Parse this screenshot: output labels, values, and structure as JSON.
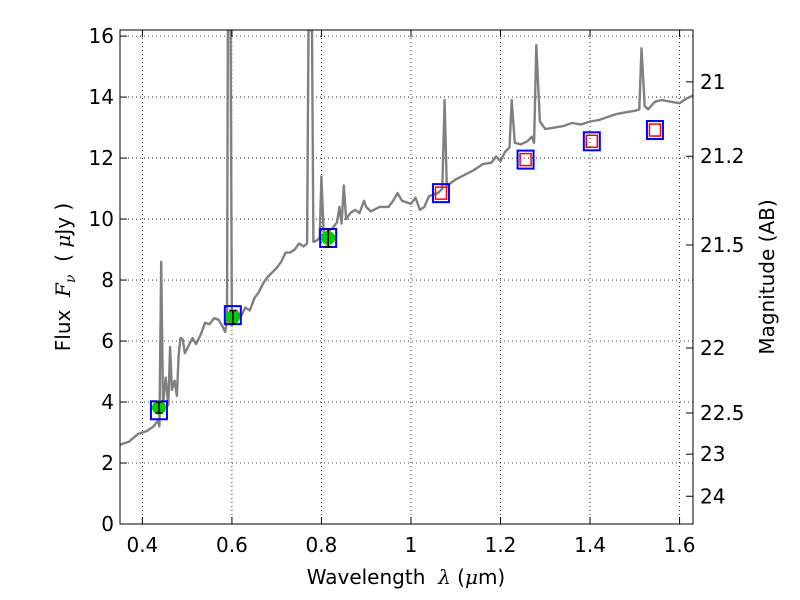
{
  "chart_data": {
    "type": "line",
    "xlabel_prefix": "Wavelength  ",
    "xlabel_symbol": "λ",
    "xlabel_suffix": " (",
    "xlabel_mu": "μ",
    "xlabel_unit": "m)",
    "ylabel_prefix": "Flux  ",
    "ylabel_symbol": "F",
    "ylabel_sub": "ν",
    "ylabel_suffix": "  ( ",
    "ylabel_mu": "μ",
    "ylabel_unit": "Jy )",
    "y2label": "Magnitude (AB)",
    "xlim": [
      0.35,
      1.63
    ],
    "ylim": [
      0,
      16.2
    ],
    "grid": true,
    "x_ticks": [
      {
        "v": 0.4,
        "label": "0.4"
      },
      {
        "v": 0.6,
        "label": "0.6"
      },
      {
        "v": 0.8,
        "label": "0.8"
      },
      {
        "v": 1.0,
        "label": "1"
      },
      {
        "v": 1.2,
        "label": "1.2"
      },
      {
        "v": 1.4,
        "label": "1.4"
      },
      {
        "v": 1.6,
        "label": "1.6"
      }
    ],
    "y_ticks": [
      {
        "v": 0,
        "label": "0"
      },
      {
        "v": 2,
        "label": "2"
      },
      {
        "v": 4,
        "label": "4"
      },
      {
        "v": 6,
        "label": "6"
      },
      {
        "v": 8,
        "label": "8"
      },
      {
        "v": 10,
        "label": "10"
      },
      {
        "v": 12,
        "label": "12"
      },
      {
        "v": 14,
        "label": "14"
      },
      {
        "v": 16,
        "label": "16"
      }
    ],
    "y2_ticks": [
      {
        "label": "21",
        "flux": 14.5
      },
      {
        "label": "21.2",
        "flux": 12.06
      },
      {
        "label": "21.5",
        "flux": 9.15
      },
      {
        "label": "22",
        "flux": 5.77
      },
      {
        "label": "22.5",
        "flux": 3.64
      },
      {
        "label": "23",
        "flux": 2.29
      },
      {
        "label": "24",
        "flux": 0.91
      }
    ],
    "series": [
      {
        "type": "line",
        "color": "#808080",
        "points": [
          [
            0.35,
            2.6
          ],
          [
            0.37,
            2.7
          ],
          [
            0.39,
            2.95
          ],
          [
            0.41,
            3.05
          ],
          [
            0.425,
            3.2
          ],
          [
            0.435,
            3.4
          ],
          [
            0.438,
            3.2
          ],
          [
            0.442,
            8.6
          ],
          [
            0.446,
            3.9
          ],
          [
            0.452,
            4.8
          ],
          [
            0.458,
            3.9
          ],
          [
            0.462,
            5.8
          ],
          [
            0.466,
            4.4
          ],
          [
            0.472,
            4.7
          ],
          [
            0.477,
            4.2
          ],
          [
            0.481,
            5.5
          ],
          [
            0.485,
            6.1
          ],
          [
            0.49,
            6.05
          ],
          [
            0.495,
            5.6
          ],
          [
            0.505,
            5.9
          ],
          [
            0.512,
            6.1
          ],
          [
            0.52,
            5.9
          ],
          [
            0.53,
            6.2
          ],
          [
            0.54,
            6.6
          ],
          [
            0.55,
            6.55
          ],
          [
            0.56,
            6.75
          ],
          [
            0.57,
            6.7
          ],
          [
            0.578,
            6.5
          ],
          [
            0.585,
            6.3
          ],
          [
            0.589,
            6.7
          ],
          [
            0.591,
            16.2
          ],
          [
            0.597,
            16.2
          ],
          [
            0.6,
            6.5
          ],
          [
            0.61,
            7.0
          ],
          [
            0.62,
            6.8
          ],
          [
            0.63,
            7.1
          ],
          [
            0.64,
            7.0
          ],
          [
            0.65,
            7.4
          ],
          [
            0.66,
            7.6
          ],
          [
            0.67,
            7.9
          ],
          [
            0.68,
            8.1
          ],
          [
            0.69,
            8.25
          ],
          [
            0.7,
            8.4
          ],
          [
            0.71,
            8.6
          ],
          [
            0.72,
            8.9
          ],
          [
            0.73,
            8.9
          ],
          [
            0.74,
            9.0
          ],
          [
            0.75,
            9.2
          ],
          [
            0.76,
            9.1
          ],
          [
            0.768,
            9.2
          ],
          [
            0.771,
            16.2
          ],
          [
            0.779,
            16.2
          ],
          [
            0.782,
            9.25
          ],
          [
            0.79,
            9.3
          ],
          [
            0.796,
            9.4
          ],
          [
            0.8,
            11.4
          ],
          [
            0.805,
            9.5
          ],
          [
            0.815,
            9.6
          ],
          [
            0.825,
            9.7
          ],
          [
            0.835,
            9.9
          ],
          [
            0.84,
            10.4
          ],
          [
            0.845,
            9.85
          ],
          [
            0.85,
            11.1
          ],
          [
            0.855,
            10.0
          ],
          [
            0.865,
            10.2
          ],
          [
            0.875,
            10.3
          ],
          [
            0.885,
            10.2
          ],
          [
            0.895,
            10.6
          ],
          [
            0.9,
            10.4
          ],
          [
            0.91,
            10.25
          ],
          [
            0.93,
            10.4
          ],
          [
            0.95,
            10.4
          ],
          [
            0.96,
            10.6
          ],
          [
            0.97,
            10.85
          ],
          [
            0.98,
            10.6
          ],
          [
            0.99,
            10.55
          ],
          [
            1.0,
            10.5
          ],
          [
            1.01,
            10.7
          ],
          [
            1.02,
            10.3
          ],
          [
            1.03,
            10.4
          ],
          [
            1.04,
            10.75
          ],
          [
            1.06,
            10.85
          ],
          [
            1.07,
            11.0
          ],
          [
            1.075,
            13.9
          ],
          [
            1.08,
            11.05
          ],
          [
            1.09,
            11.2
          ],
          [
            1.1,
            11.3
          ],
          [
            1.12,
            11.45
          ],
          [
            1.14,
            11.6
          ],
          [
            1.16,
            11.8
          ],
          [
            1.18,
            11.85
          ],
          [
            1.19,
            12.05
          ],
          [
            1.2,
            11.9
          ],
          [
            1.21,
            12.2
          ],
          [
            1.22,
            12.35
          ],
          [
            1.225,
            13.9
          ],
          [
            1.232,
            12.5
          ],
          [
            1.245,
            12.45
          ],
          [
            1.26,
            12.55
          ],
          [
            1.27,
            12.7
          ],
          [
            1.275,
            12.5
          ],
          [
            1.28,
            15.7
          ],
          [
            1.288,
            13.2
          ],
          [
            1.3,
            12.95
          ],
          [
            1.32,
            13.0
          ],
          [
            1.34,
            13.05
          ],
          [
            1.36,
            13.15
          ],
          [
            1.38,
            13.1
          ],
          [
            1.4,
            13.2
          ],
          [
            1.42,
            13.25
          ],
          [
            1.44,
            13.35
          ],
          [
            1.46,
            13.45
          ],
          [
            1.48,
            13.5
          ],
          [
            1.5,
            13.55
          ],
          [
            1.51,
            13.6
          ],
          [
            1.515,
            15.6
          ],
          [
            1.522,
            13.7
          ],
          [
            1.53,
            13.6
          ],
          [
            1.545,
            13.85
          ],
          [
            1.56,
            13.9
          ],
          [
            1.58,
            13.85
          ],
          [
            1.6,
            13.8
          ],
          [
            1.615,
            13.95
          ],
          [
            1.63,
            14.05
          ]
        ]
      },
      {
        "type": "model-photometry",
        "marker": "square",
        "color": "#0000ff",
        "points": [
          [
            0.437,
            3.73
          ],
          [
            0.602,
            6.85
          ],
          [
            0.815,
            9.38
          ],
          [
            1.067,
            10.85
          ],
          [
            1.256,
            11.95
          ],
          [
            1.404,
            12.55
          ],
          [
            1.545,
            12.92
          ]
        ]
      },
      {
        "type": "observed",
        "marker": "circle",
        "color": "#00cc00",
        "errorbars": true,
        "points": [
          {
            "x": 0.437,
            "y": 3.82,
            "err": 0.18
          },
          {
            "x": 0.602,
            "y": 6.78,
            "err": 0.22
          },
          {
            "x": 0.815,
            "y": 9.38,
            "err": 0.28
          }
        ]
      },
      {
        "type": "upper-limits",
        "marker": "square",
        "color": "#ff0000",
        "points": [
          [
            1.067,
            10.85
          ],
          [
            1.256,
            11.95
          ],
          [
            1.404,
            12.55
          ],
          [
            1.545,
            12.92
          ]
        ]
      }
    ]
  }
}
